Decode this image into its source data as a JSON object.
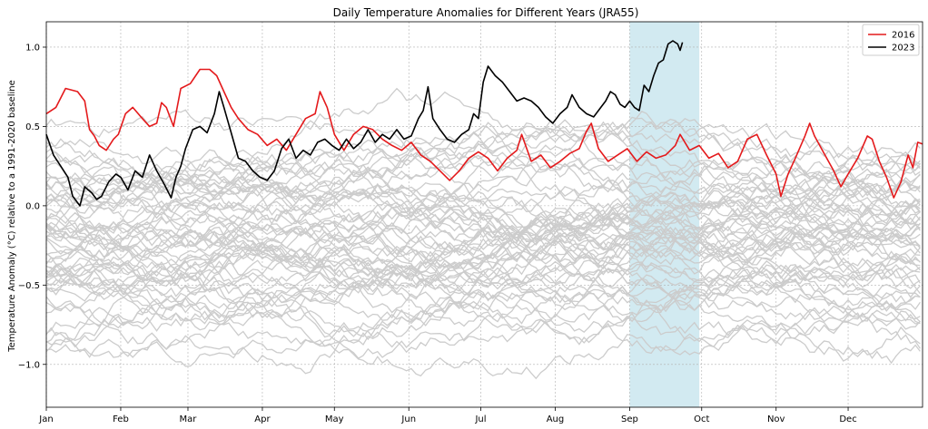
{
  "chart_data": {
    "type": "line",
    "title": "Daily Temperature Anomalies for Different Years (JRA55)",
    "xlabel": "",
    "ylabel": "Temperature Anomaly (°C) relative to a 1991-2020 baseline",
    "xlim": [
      0,
      365
    ],
    "ylim": [
      -1.27,
      1.16
    ],
    "grid": true,
    "legend_position": "top-right",
    "x_ticks": [
      {
        "day": 0,
        "label": "Jan"
      },
      {
        "day": 31,
        "label": "Feb"
      },
      {
        "day": 59,
        "label": "Mar"
      },
      {
        "day": 90,
        "label": "Apr"
      },
      {
        "day": 120,
        "label": "May"
      },
      {
        "day": 151,
        "label": "Jun"
      },
      {
        "day": 181,
        "label": "Jul"
      },
      {
        "day": 212,
        "label": "Aug"
      },
      {
        "day": 243,
        "label": "Sep"
      },
      {
        "day": 273,
        "label": "Oct"
      },
      {
        "day": 304,
        "label": "Nov"
      },
      {
        "day": 334,
        "label": "Dec"
      }
    ],
    "y_ticks": [
      {
        "value": -1.0,
        "label": "−1.0"
      },
      {
        "value": -0.5,
        "label": "−0.5"
      },
      {
        "value": 0.0,
        "label": "0.0"
      },
      {
        "value": 0.5,
        "label": "0.5"
      },
      {
        "value": 1.0,
        "label": "1.0"
      }
    ],
    "highlight_span": {
      "start_day": 243,
      "end_day": 272,
      "color": "#add8e6"
    },
    "background_series": {
      "description": "historical years",
      "color": "#cccccc",
      "count": 60,
      "center": -0.25,
      "spread": 0.62
    },
    "series": [
      {
        "name": "2016",
        "color": "#e41a1c",
        "points": [
          [
            0,
            0.58
          ],
          [
            4,
            0.62
          ],
          [
            8,
            0.74
          ],
          [
            13,
            0.72
          ],
          [
            16,
            0.66
          ],
          [
            18,
            0.48
          ],
          [
            20,
            0.44
          ],
          [
            22,
            0.38
          ],
          [
            25,
            0.35
          ],
          [
            28,
            0.42
          ],
          [
            30,
            0.45
          ],
          [
            33,
            0.58
          ],
          [
            36,
            0.62
          ],
          [
            40,
            0.55
          ],
          [
            43,
            0.5
          ],
          [
            46,
            0.52
          ],
          [
            48,
            0.65
          ],
          [
            50,
            0.62
          ],
          [
            53,
            0.5
          ],
          [
            56,
            0.74
          ],
          [
            60,
            0.77
          ],
          [
            64,
            0.86
          ],
          [
            68,
            0.86
          ],
          [
            71,
            0.82
          ],
          [
            74,
            0.72
          ],
          [
            77,
            0.62
          ],
          [
            80,
            0.55
          ],
          [
            84,
            0.48
          ],
          [
            88,
            0.45
          ],
          [
            92,
            0.38
          ],
          [
            96,
            0.42
          ],
          [
            100,
            0.35
          ],
          [
            104,
            0.45
          ],
          [
            108,
            0.55
          ],
          [
            112,
            0.58
          ],
          [
            114,
            0.72
          ],
          [
            117,
            0.62
          ],
          [
            120,
            0.45
          ],
          [
            124,
            0.35
          ],
          [
            128,
            0.45
          ],
          [
            132,
            0.5
          ],
          [
            136,
            0.48
          ],
          [
            140,
            0.42
          ],
          [
            144,
            0.38
          ],
          [
            148,
            0.35
          ],
          [
            152,
            0.4
          ],
          [
            156,
            0.32
          ],
          [
            160,
            0.28
          ],
          [
            164,
            0.22
          ],
          [
            168,
            0.16
          ],
          [
            172,
            0.22
          ],
          [
            176,
            0.3
          ],
          [
            180,
            0.34
          ],
          [
            184,
            0.3
          ],
          [
            188,
            0.22
          ],
          [
            192,
            0.3
          ],
          [
            196,
            0.35
          ],
          [
            198,
            0.45
          ],
          [
            202,
            0.28
          ],
          [
            206,
            0.32
          ],
          [
            210,
            0.24
          ],
          [
            214,
            0.28
          ],
          [
            218,
            0.33
          ],
          [
            222,
            0.36
          ],
          [
            225,
            0.47
          ],
          [
            227,
            0.52
          ],
          [
            230,
            0.36
          ],
          [
            234,
            0.28
          ],
          [
            238,
            0.32
          ],
          [
            242,
            0.36
          ],
          [
            246,
            0.28
          ],
          [
            250,
            0.34
          ],
          [
            254,
            0.3
          ],
          [
            258,
            0.32
          ],
          [
            262,
            0.38
          ],
          [
            264,
            0.45
          ],
          [
            268,
            0.35
          ],
          [
            272,
            0.38
          ],
          [
            276,
            0.3
          ],
          [
            280,
            0.33
          ],
          [
            284,
            0.24
          ],
          [
            288,
            0.28
          ],
          [
            292,
            0.42
          ],
          [
            296,
            0.45
          ],
          [
            300,
            0.32
          ],
          [
            304,
            0.2
          ],
          [
            306,
            0.06
          ],
          [
            309,
            0.2
          ],
          [
            312,
            0.3
          ],
          [
            316,
            0.44
          ],
          [
            318,
            0.52
          ],
          [
            320,
            0.44
          ],
          [
            324,
            0.33
          ],
          [
            328,
            0.22
          ],
          [
            331,
            0.12
          ],
          [
            334,
            0.2
          ],
          [
            338,
            0.3
          ],
          [
            342,
            0.44
          ],
          [
            344,
            0.42
          ],
          [
            347,
            0.28
          ],
          [
            350,
            0.18
          ],
          [
            353,
            0.05
          ],
          [
            356,
            0.15
          ],
          [
            359,
            0.32
          ],
          [
            361,
            0.24
          ],
          [
            363,
            0.4
          ],
          [
            365,
            0.39
          ]
        ]
      },
      {
        "name": "2023",
        "color": "#000000",
        "points": [
          [
            0,
            0.45
          ],
          [
            3,
            0.32
          ],
          [
            6,
            0.25
          ],
          [
            9,
            0.18
          ],
          [
            11,
            0.06
          ],
          [
            14,
            0.0
          ],
          [
            16,
            0.12
          ],
          [
            19,
            0.08
          ],
          [
            21,
            0.04
          ],
          [
            23,
            0.06
          ],
          [
            26,
            0.15
          ],
          [
            29,
            0.2
          ],
          [
            31,
            0.18
          ],
          [
            34,
            0.1
          ],
          [
            37,
            0.22
          ],
          [
            40,
            0.18
          ],
          [
            43,
            0.32
          ],
          [
            46,
            0.22
          ],
          [
            49,
            0.14
          ],
          [
            52,
            0.05
          ],
          [
            54,
            0.18
          ],
          [
            56,
            0.25
          ],
          [
            58,
            0.36
          ],
          [
            61,
            0.48
          ],
          [
            64,
            0.5
          ],
          [
            67,
            0.46
          ],
          [
            70,
            0.58
          ],
          [
            72,
            0.72
          ],
          [
            74,
            0.62
          ],
          [
            77,
            0.46
          ],
          [
            80,
            0.3
          ],
          [
            83,
            0.28
          ],
          [
            86,
            0.22
          ],
          [
            89,
            0.18
          ],
          [
            92,
            0.16
          ],
          [
            95,
            0.22
          ],
          [
            98,
            0.36
          ],
          [
            101,
            0.42
          ],
          [
            104,
            0.3
          ],
          [
            107,
            0.35
          ],
          [
            110,
            0.32
          ],
          [
            113,
            0.4
          ],
          [
            116,
            0.42
          ],
          [
            119,
            0.38
          ],
          [
            122,
            0.35
          ],
          [
            125,
            0.42
          ],
          [
            128,
            0.36
          ],
          [
            131,
            0.4
          ],
          [
            134,
            0.48
          ],
          [
            137,
            0.4
          ],
          [
            140,
            0.45
          ],
          [
            143,
            0.42
          ],
          [
            146,
            0.48
          ],
          [
            149,
            0.42
          ],
          [
            152,
            0.44
          ],
          [
            155,
            0.55
          ],
          [
            157,
            0.6
          ],
          [
            159,
            0.75
          ],
          [
            161,
            0.55
          ],
          [
            164,
            0.48
          ],
          [
            167,
            0.42
          ],
          [
            170,
            0.4
          ],
          [
            173,
            0.45
          ],
          [
            176,
            0.48
          ],
          [
            178,
            0.58
          ],
          [
            180,
            0.55
          ],
          [
            182,
            0.78
          ],
          [
            184,
            0.88
          ],
          [
            187,
            0.82
          ],
          [
            190,
            0.78
          ],
          [
            193,
            0.72
          ],
          [
            196,
            0.66
          ],
          [
            199,
            0.68
          ],
          [
            202,
            0.66
          ],
          [
            205,
            0.62
          ],
          [
            208,
            0.56
          ],
          [
            211,
            0.52
          ],
          [
            214,
            0.58
          ],
          [
            217,
            0.62
          ],
          [
            219,
            0.7
          ],
          [
            222,
            0.62
          ],
          [
            225,
            0.58
          ],
          [
            228,
            0.56
          ],
          [
            231,
            0.62
          ],
          [
            233,
            0.66
          ],
          [
            235,
            0.72
          ],
          [
            237,
            0.7
          ],
          [
            239,
            0.64
          ],
          [
            241,
            0.62
          ],
          [
            243,
            0.66
          ],
          [
            245,
            0.62
          ],
          [
            247,
            0.6
          ],
          [
            249,
            0.76
          ],
          [
            251,
            0.72
          ],
          [
            253,
            0.82
          ],
          [
            255,
            0.9
          ],
          [
            257,
            0.92
          ],
          [
            259,
            1.02
          ],
          [
            261,
            1.04
          ],
          [
            263,
            1.02
          ],
          [
            264,
            0.98
          ],
          [
            265,
            1.03
          ]
        ]
      }
    ]
  }
}
